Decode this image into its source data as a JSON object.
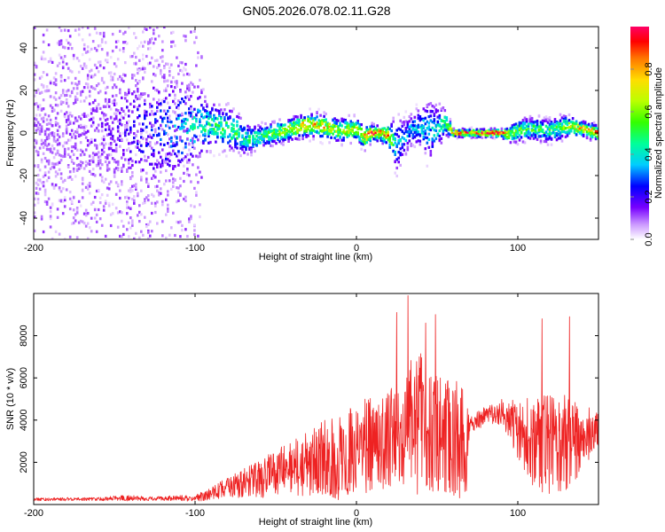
{
  "figure": {
    "title": "GN05.2026.078.02.11.G28"
  },
  "chart_data": [
    {
      "type": "heatmap",
      "xlabel": "Height of straight line (km)",
      "ylabel": "Frequency (Hz)",
      "xlim": [
        -200,
        150
      ],
      "ylim": [
        -50,
        50
      ],
      "xticks": [
        "-200",
        "-100",
        "0",
        "100"
      ],
      "yticks": [
        "-40",
        "-20",
        "0",
        "20",
        "40"
      ],
      "colorbar": {
        "label": "Normalized spectral amplitude",
        "range": [
          0,
          1
        ],
        "ticks": [
          "0.0",
          "0.2",
          "0.4",
          "0.6",
          "0.8"
        ]
      },
      "ridge": {
        "x": [
          -200,
          -150,
          -120,
          -100,
          -90,
          -75,
          -68,
          -60,
          -50,
          -40,
          -30,
          -20,
          -10,
          0,
          5,
          10,
          15,
          20,
          25,
          30,
          35,
          40,
          45,
          50,
          55,
          60,
          70,
          80,
          90,
          95,
          100,
          110,
          120,
          130,
          140,
          150
        ],
        "frequency": [
          1,
          2,
          1,
          3,
          4,
          1,
          -3,
          -2,
          0,
          2,
          4,
          3,
          1,
          2,
          -2,
          0,
          0,
          -1,
          -6,
          -2,
          2,
          3,
          1,
          2,
          5,
          0,
          0,
          0,
          0,
          -1,
          1,
          2,
          1,
          3,
          2,
          0
        ],
        "spread": [
          22,
          18,
          18,
          10,
          6,
          5,
          4,
          3,
          3,
          3,
          3,
          3,
          3,
          3,
          3,
          2,
          2,
          3,
          7,
          5,
          4,
          5,
          8,
          6,
          4,
          1,
          1,
          1,
          1,
          2,
          3,
          3,
          3,
          3,
          2,
          2
        ],
        "peak_amplitude": [
          0.1,
          0.18,
          0.3,
          0.45,
          0.5,
          0.6,
          0.5,
          0.55,
          0.62,
          0.75,
          0.85,
          0.8,
          0.75,
          0.7,
          0.85,
          1.0,
          0.95,
          0.9,
          0.4,
          0.35,
          0.4,
          0.45,
          0.4,
          0.45,
          0.5,
          1.0,
          1.0,
          1.0,
          1.0,
          0.8,
          0.6,
          0.55,
          0.55,
          0.65,
          0.85,
          0.9
        ]
      }
    },
    {
      "type": "line",
      "xlabel": "Height of straight line (km)",
      "ylabel": "SNR (10 * v/v)",
      "xlim": [
        -200,
        150
      ],
      "ylim": [
        0,
        10000
      ],
      "xticks": [
        "-200",
        "-100",
        "0",
        "100"
      ],
      "yticks": [
        "2000",
        "4000",
        "6000",
        "8000"
      ],
      "series": [
        {
          "name": "SNR",
          "color": "#ee2222",
          "x": [
            -200,
            -160,
            -140,
            -130,
            -100,
            -90,
            -80,
            -70,
            -60,
            -50,
            -40,
            -30,
            -20,
            -10,
            0,
            10,
            20,
            25,
            30,
            35,
            40,
            45,
            50,
            55,
            60,
            65,
            68,
            70,
            80,
            90,
            95,
            100,
            110,
            120,
            130,
            140,
            150
          ],
          "mean": [
            250,
            260,
            320,
            280,
            300,
            500,
            800,
            1000,
            1200,
            1500,
            1700,
            2000,
            2200,
            2200,
            2600,
            2900,
            3100,
            3300,
            3600,
            3900,
            3800,
            3600,
            3400,
            3300,
            3200,
            3000,
            2800,
            3800,
            4200,
            4400,
            4000,
            3600,
            3000,
            2800,
            2800,
            3200,
            3600
          ],
          "amplitude": [
            80,
            80,
            150,
            100,
            150,
            300,
            500,
            700,
            900,
            1100,
            1300,
            1600,
            1800,
            2000,
            2200,
            2300,
            2400,
            2600,
            3000,
            3300,
            3500,
            3200,
            3000,
            2900,
            2800,
            2800,
            2700,
            400,
            500,
            600,
            900,
            1500,
            2200,
            2400,
            2400,
            1500,
            900
          ],
          "peaks": [
            {
              "x": 25,
              "y": 9100
            },
            {
              "x": 32,
              "y": 9900
            },
            {
              "x": 43,
              "y": 8600
            },
            {
              "x": 49,
              "y": 9000
            },
            {
              "x": 115,
              "y": 8800
            },
            {
              "x": 132,
              "y": 8900
            }
          ]
        }
      ]
    }
  ]
}
